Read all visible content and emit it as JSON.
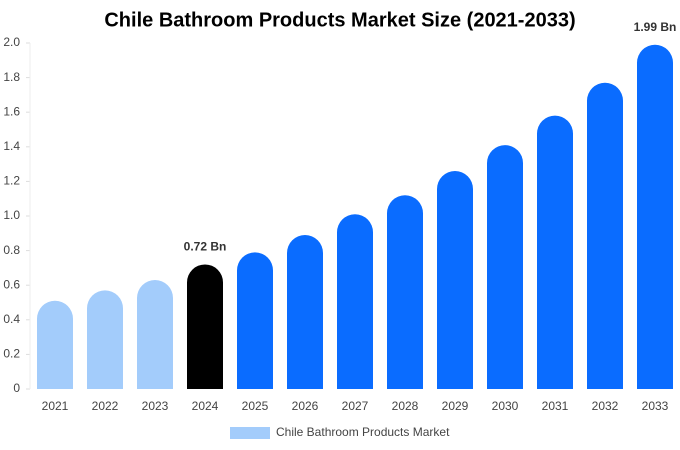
{
  "chart_data": {
    "type": "bar",
    "title": "Chile Bathroom Products Market Size (2021-2033)",
    "categories": [
      "2021",
      "2022",
      "2023",
      "2024",
      "2025",
      "2026",
      "2027",
      "2028",
      "2029",
      "2030",
      "2031",
      "2032",
      "2033"
    ],
    "series": [
      {
        "name": "Chile Bathroom Products Market",
        "color": "#a3ccfb",
        "values": [
          0.51,
          0.57,
          0.63,
          0.72,
          0.79,
          0.89,
          1.01,
          1.12,
          1.26,
          1.41,
          1.58,
          1.77,
          1.99
        ],
        "colors": [
          "#a3ccfb",
          "#a3ccfb",
          "#a3ccfb",
          "#000000",
          "#0a6cff",
          "#0a6cff",
          "#0a6cff",
          "#0a6cff",
          "#0a6cff",
          "#0a6cff",
          "#0a6cff",
          "#0a6cff",
          "#0a6cff"
        ],
        "value_labels": [
          null,
          null,
          null,
          "0.72 Bn",
          null,
          null,
          null,
          null,
          null,
          null,
          null,
          null,
          "1.99 Bn"
        ]
      }
    ],
    "ylim": [
      0,
      2
    ],
    "yticks": [
      0,
      0.2,
      0.4,
      0.6,
      0.8,
      {
        "value": 1,
        "label": "1.0"
      },
      1.2,
      1.4,
      1.6,
      1.8,
      {
        "value": 2,
        "label": "2.0"
      }
    ],
    "grid": false,
    "legend": "bottom"
  }
}
